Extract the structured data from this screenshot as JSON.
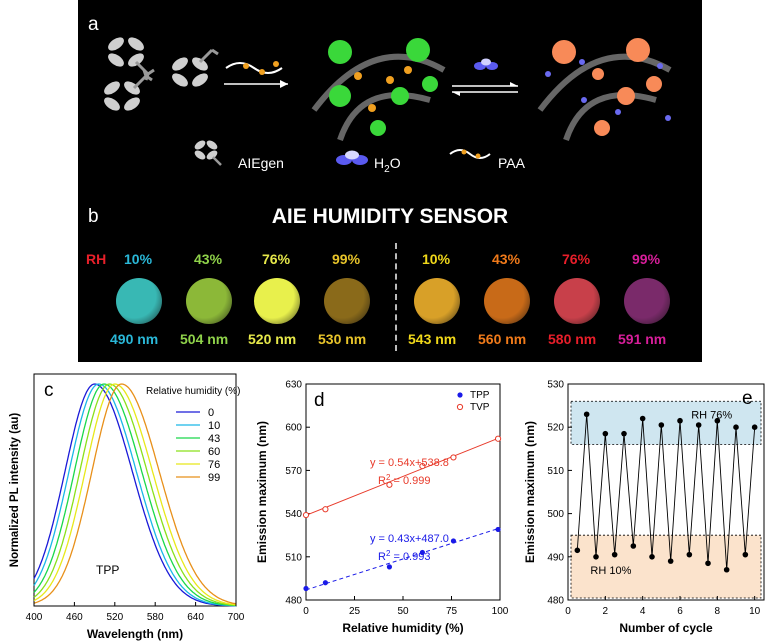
{
  "panel_a": {
    "label": "a",
    "legend": [
      {
        "name": "AIEgen"
      },
      {
        "name": "H",
        "sub": "2",
        "suffix": "O"
      },
      {
        "name": "PAA"
      }
    ]
  },
  "panel_b": {
    "label": "b",
    "title": "AIE HUMIDITY SENSOR",
    "rh_prefix": "RH",
    "rh_prefix_color": "#e8202a",
    "samples": [
      {
        "rh": "10%",
        "nm": "490 nm",
        "color": "#2ab8d8",
        "dot": "#38b8b4"
      },
      {
        "rh": "43%",
        "nm": "504 nm",
        "color": "#8fd24a",
        "dot": "#8cb838"
      },
      {
        "rh": "76%",
        "nm": "520 nm",
        "color": "#e6e84a",
        "dot": "#e8f04c"
      },
      {
        "rh": "99%",
        "nm": "530 nm",
        "color": "#e8c42a",
        "dot": "#8a6a1a"
      },
      {
        "rh": "10%",
        "nm": "543 nm",
        "color": "#f0d81a",
        "dot": "#d8a028"
      },
      {
        "rh": "43%",
        "nm": "560 nm",
        "color": "#f07a1a",
        "dot": "#c86a18"
      },
      {
        "rh": "76%",
        "nm": "580 nm",
        "color": "#e81e2a",
        "dot": "#c8404a"
      },
      {
        "rh": "99%",
        "nm": "591 nm",
        "color": "#d81e9a",
        "dot": "#7a2a6a"
      }
    ]
  },
  "chart_data": [
    {
      "panel": "c",
      "type": "line",
      "xlabel": "Wavelength (nm)",
      "ylabel": "Normalized PL intensity (au)",
      "xlim": [
        400,
        700
      ],
      "xticks": [
        400,
        460,
        520,
        580,
        640,
        700
      ],
      "annotation": "TPP",
      "legend_title": "Relative humidity (%)",
      "series": [
        {
          "name": "0",
          "peak": 490,
          "color": "#1a1ad8"
        },
        {
          "name": "10",
          "peak": 496,
          "color": "#1ab8e8"
        },
        {
          "name": "43",
          "peak": 504,
          "color": "#1ad84a"
        },
        {
          "name": "60",
          "peak": 512,
          "color": "#8ae01a"
        },
        {
          "name": "76",
          "peak": 520,
          "color": "#e8e81a"
        },
        {
          "name": "99",
          "peak": 530,
          "color": "#e8901a"
        }
      ]
    },
    {
      "panel": "d",
      "type": "scatter",
      "xlabel": "Relative humidity (%)",
      "ylabel": "Emission maximum (nm)",
      "xlim": [
        0,
        100
      ],
      "ylim": [
        480,
        630
      ],
      "xticks": [
        0,
        25,
        50,
        75,
        100
      ],
      "yticks": [
        480,
        510,
        540,
        570,
        600,
        630
      ],
      "series": [
        {
          "name": "TPP",
          "color": "#1a1ae8",
          "x": [
            0,
            10,
            43,
            60,
            76,
            99
          ],
          "y": [
            488,
            492,
            503,
            513,
            521,
            529
          ],
          "fit": "y = 0.43x+487.0",
          "r2_base": "R",
          "r2_sup": "2",
          "r2_val": " = 0.993",
          "slope": 0.43,
          "intercept": 487.0
        },
        {
          "name": "TVP",
          "color": "#e83a2a",
          "x": [
            0,
            10,
            43,
            60,
            76,
            99
          ],
          "y": [
            539,
            543,
            560,
            573,
            579,
            592
          ],
          "fit": "y = 0.54x+538.8",
          "r2_base": "R",
          "r2_sup": "2",
          "r2_val": " = 0.999",
          "slope": 0.54,
          "intercept": 538.8
        }
      ]
    },
    {
      "panel": "e",
      "type": "line",
      "xlabel": "Number of cycle",
      "ylabel": "Emission maximum (nm)",
      "xlim": [
        0,
        10.5
      ],
      "ylim": [
        480,
        530
      ],
      "xticks": [
        0,
        2,
        4,
        6,
        8,
        10
      ],
      "yticks": [
        480,
        490,
        500,
        510,
        520,
        530
      ],
      "bands": [
        {
          "label": "RH 76%",
          "y": [
            516,
            526
          ],
          "color": "#cfe6f0"
        },
        {
          "label": "RH 10%",
          "y": [
            480,
            495
          ],
          "color": "#fbe3cc"
        }
      ],
      "x": [
        0.5,
        1,
        1.5,
        2,
        2.5,
        3,
        3.5,
        4,
        4.5,
        5,
        5.5,
        6,
        6.5,
        7,
        7.5,
        8,
        8.5,
        9,
        9.5,
        10
      ],
      "y": [
        491.5,
        523,
        490,
        518.5,
        490.5,
        518.5,
        492.5,
        522,
        490,
        520.5,
        489,
        521.5,
        490.5,
        520.5,
        488.5,
        521.5,
        487,
        520,
        490.5,
        520
      ]
    }
  ]
}
